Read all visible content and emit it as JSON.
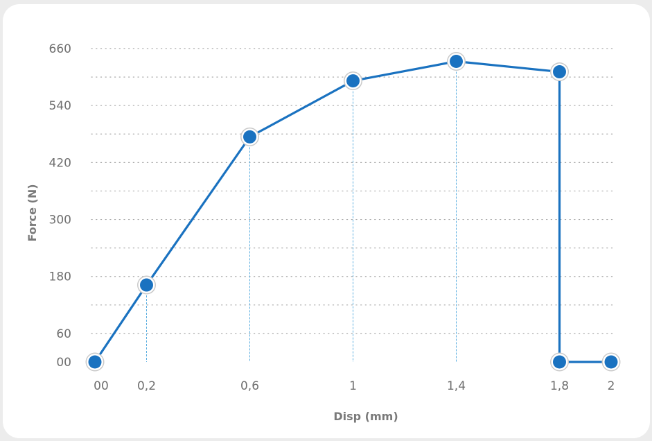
{
  "chart_data": {
    "type": "line",
    "title": "",
    "xlabel": "Disp (mm)",
    "ylabel": "Force (N)",
    "xlim": [
      0,
      2
    ],
    "ylim": [
      0,
      660
    ],
    "x_ticks": [
      {
        "value": 0,
        "label": "00"
      },
      {
        "value": 0.2,
        "label": "0,2"
      },
      {
        "value": 0.6,
        "label": "0,6"
      },
      {
        "value": 1,
        "label": "1"
      },
      {
        "value": 1.4,
        "label": "1,4"
      },
      {
        "value": 1.8,
        "label": "1,8"
      },
      {
        "value": 2,
        "label": "2"
      }
    ],
    "y_ticks": [
      {
        "value": 0,
        "label": "00"
      },
      {
        "value": 60,
        "label": "60"
      },
      {
        "value": 180,
        "label": "180"
      },
      {
        "value": 300,
        "label": "300"
      },
      {
        "value": 420,
        "label": "420"
      },
      {
        "value": 540,
        "label": "540"
      },
      {
        "value": 660,
        "label": "660"
      }
    ],
    "grid_y": [
      0,
      60,
      120,
      180,
      240,
      300,
      360,
      420,
      480,
      540,
      600,
      660
    ],
    "grid": true,
    "legend": "none",
    "series": [
      {
        "points": [
          {
            "x": 0,
            "y": 0
          },
          {
            "x": 0.2,
            "y": 162
          },
          {
            "x": 0.6,
            "y": 474
          },
          {
            "x": 1,
            "y": 592
          },
          {
            "x": 1.4,
            "y": 633
          },
          {
            "x": 1.8,
            "y": 611
          },
          {
            "x": 1.8,
            "y": 0
          },
          {
            "x": 2,
            "y": 0
          }
        ]
      }
    ],
    "colors": {
      "line": "#1a72c0",
      "marker_fill": "#1a72c0",
      "marker_stroke": "#ffffff",
      "marker_outline": "#c9c9c9",
      "grid": "#a8a8a8",
      "drop_line": "#5aaee0"
    }
  }
}
